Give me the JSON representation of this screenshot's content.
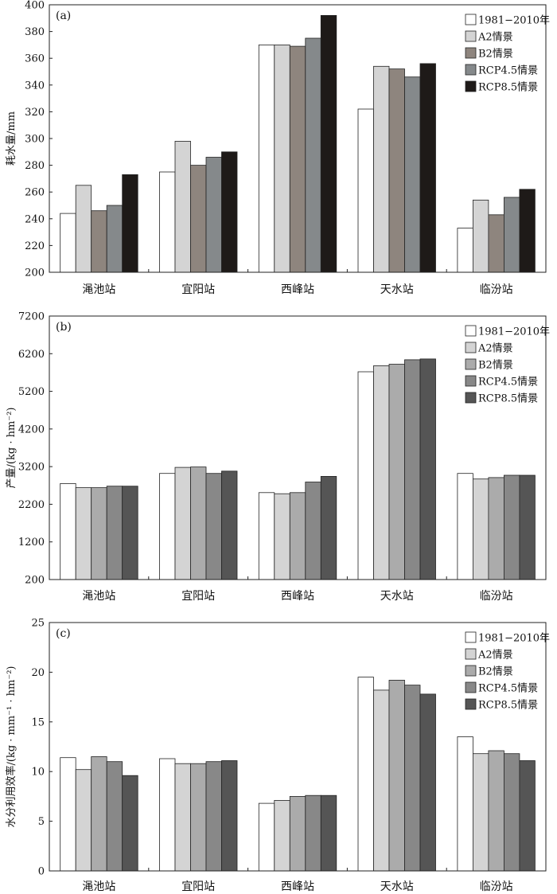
{
  "chart_data": [
    {
      "type": "bar",
      "panel_label": "(a)",
      "ylabel": "耗水量/mm",
      "ylim": [
        200,
        400
      ],
      "yticks": [
        "200",
        "220",
        "240",
        "260",
        "280",
        "300",
        "320",
        "340",
        "360",
        "380",
        "400"
      ],
      "categories": [
        "渑池站",
        "宜阳站",
        "西峰站",
        "天水站",
        "临汾站"
      ],
      "legend_position": "top-right",
      "series": [
        {
          "name": "1981−2010年",
          "color": "#ffffff",
          "values": [
            244,
            275,
            370,
            322,
            233
          ]
        },
        {
          "name": "A2情景",
          "color": "#d4d4d4",
          "values": [
            265,
            298,
            370,
            354,
            254
          ]
        },
        {
          "name": "B2情景",
          "color": "#8e857e",
          "values": [
            246,
            280,
            369,
            352,
            243
          ]
        },
        {
          "name": "RCP4.5情景",
          "color": "#85898b",
          "values": [
            250,
            286,
            375,
            346,
            256
          ]
        },
        {
          "name": "RCP8.5情景",
          "color": "#1e1a18",
          "values": [
            273,
            290,
            392,
            356,
            262
          ]
        }
      ]
    },
    {
      "type": "bar",
      "panel_label": "(b)",
      "ylabel": "产量/(kg · hm⁻²)",
      "ylim": [
        200,
        7200
      ],
      "yticks": [
        "200",
        "1200",
        "2200",
        "3200",
        "4200",
        "5200",
        "6200",
        "7200"
      ],
      "categories": [
        "渑池站",
        "宜阳站",
        "西峰站",
        "天水站",
        "临汾站"
      ],
      "legend_position": "top-right",
      "series": [
        {
          "name": "1981−2010年",
          "color": "#ffffff",
          "values": [
            2750,
            3020,
            2510,
            5720,
            3020
          ]
        },
        {
          "name": "A2情景",
          "color": "#d4d4d4",
          "values": [
            2640,
            3180,
            2480,
            5880,
            2870
          ]
        },
        {
          "name": "B2情景",
          "color": "#ababab",
          "values": [
            2640,
            3190,
            2510,
            5920,
            2910
          ]
        },
        {
          "name": "RCP4.5情景",
          "color": "#888888",
          "values": [
            2680,
            3020,
            2790,
            6040,
            2970
          ]
        },
        {
          "name": "RCP8.5情景",
          "color": "#555555",
          "values": [
            2680,
            3080,
            2940,
            6060,
            2970
          ]
        }
      ]
    },
    {
      "type": "bar",
      "panel_label": "(c)",
      "ylabel": "水分利用效率/(kg · mm⁻¹ · hm⁻²)",
      "ylim": [
        0,
        25
      ],
      "yticks": [
        "0",
        "5",
        "10",
        "15",
        "20",
        "25"
      ],
      "categories": [
        "渑池站",
        "宜阳站",
        "西峰站",
        "天水站",
        "临汾站"
      ],
      "legend_position": "top-right",
      "series": [
        {
          "name": "1981−2010年",
          "color": "#ffffff",
          "values": [
            11.4,
            11.3,
            6.8,
            19.5,
            13.5
          ]
        },
        {
          "name": "A2情景",
          "color": "#d4d4d4",
          "values": [
            10.2,
            10.8,
            7.1,
            18.2,
            11.8
          ]
        },
        {
          "name": "B2情景",
          "color": "#ababab",
          "values": [
            11.5,
            10.8,
            7.5,
            19.2,
            12.1
          ]
        },
        {
          "name": "RCP4.5情景",
          "color": "#888888",
          "values": [
            11.0,
            11.0,
            7.6,
            18.7,
            11.8
          ]
        },
        {
          "name": "RCP8.5情景",
          "color": "#555555",
          "values": [
            9.6,
            11.1,
            7.6,
            17.8,
            11.1
          ]
        }
      ]
    }
  ]
}
